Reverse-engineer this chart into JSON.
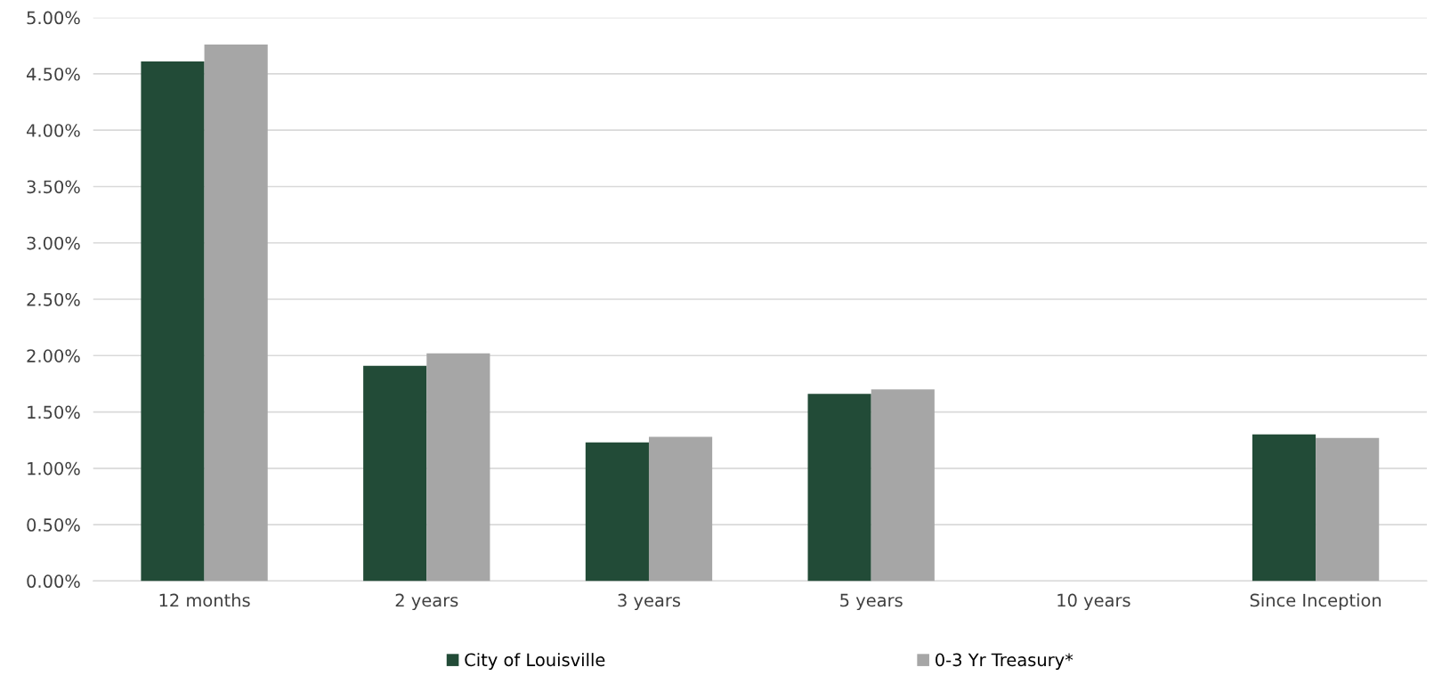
{
  "chart_data": {
    "type": "bar",
    "categories": [
      "12 months",
      "2 years",
      "3 years",
      "5 years",
      "10 years",
      "Since Inception"
    ],
    "series": [
      {
        "name": "City of Louisville",
        "color": "#224b37",
        "values": [
          4.61,
          1.91,
          1.23,
          1.66,
          null,
          1.3
        ]
      },
      {
        "name": "0-3 Yr Treasury*",
        "color": "#a6a6a6",
        "values": [
          4.76,
          2.02,
          1.28,
          1.7,
          null,
          1.27
        ]
      }
    ],
    "ylim": [
      0,
      5
    ],
    "yticks": [
      {
        "value": 0,
        "label": "0.00%"
      },
      {
        "value": 0.5,
        "label": "0.50%"
      },
      {
        "value": 1,
        "label": "1.00%"
      },
      {
        "value": 1.5,
        "label": "1.50%"
      },
      {
        "value": 2,
        "label": "2.00%"
      },
      {
        "value": 2.5,
        "label": "2.50%"
      },
      {
        "value": 3,
        "label": "3.00%"
      },
      {
        "value": 3.5,
        "label": "3.50%"
      },
      {
        "value": 4,
        "label": "4.00%"
      },
      {
        "value": 4.5,
        "label": "4.50%"
      },
      {
        "value": 5,
        "label": "5.00%"
      }
    ],
    "grid": "y",
    "legend": "bottom"
  }
}
